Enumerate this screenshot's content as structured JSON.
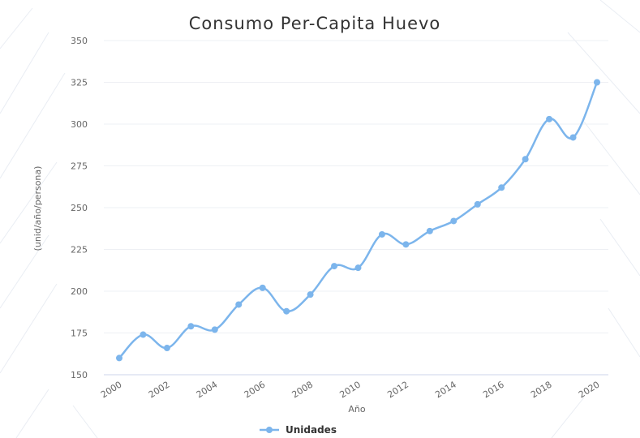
{
  "chart_data": {
    "type": "line",
    "title": "Consumo Per-Capita Huevo",
    "xlabel": "Año",
    "ylabel": "(unid/año/persona)",
    "x": [
      2000,
      2001,
      2002,
      2003,
      2004,
      2005,
      2006,
      2007,
      2008,
      2009,
      2010,
      2011,
      2012,
      2013,
      2014,
      2015,
      2016,
      2017,
      2018,
      2019,
      2020
    ],
    "x_tick_labels": [
      "2000",
      "2002",
      "2004",
      "2006",
      "2008",
      "2010",
      "2012",
      "2014",
      "2016",
      "2018",
      "2020"
    ],
    "y_tick_labels": [
      "150",
      "175",
      "200",
      "225",
      "250",
      "275",
      "300",
      "325",
      "350"
    ],
    "ylim": [
      150,
      350
    ],
    "grid": true,
    "legend_position": "bottom",
    "series": [
      {
        "name": "Unidades",
        "color": "#7cb5ec",
        "values": [
          160,
          174,
          166,
          179,
          177,
          192,
          202,
          188,
          198,
          215,
          214,
          234,
          228,
          236,
          242,
          252,
          262,
          279,
          303,
          292,
          325
        ]
      }
    ]
  }
}
